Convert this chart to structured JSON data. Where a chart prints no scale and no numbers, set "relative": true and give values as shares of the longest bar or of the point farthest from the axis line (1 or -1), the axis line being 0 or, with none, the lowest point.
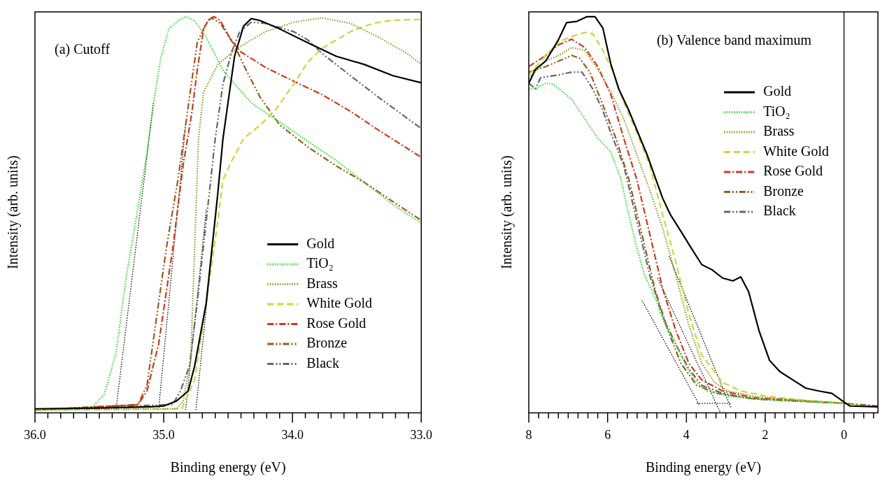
{
  "chart_data": [
    {
      "type": "line",
      "title": "(a) Cutoff",
      "xlabel": "Binding energy (eV)",
      "ylabel": "Intensity (arb. units)",
      "relative": true,
      "tick_labels": "x",
      "legend": "bottom right",
      "xlim": [
        36,
        33
      ],
      "xticks": [
        {
          "value": 36,
          "label": "36.0"
        },
        {
          "value": 35.9,
          "label": null
        },
        {
          "value": 35.8,
          "label": null
        },
        {
          "value": 35.7,
          "label": null
        },
        {
          "value": 35.6,
          "label": null
        },
        {
          "value": 35.5,
          "label": null
        },
        {
          "value": 35.4,
          "label": null
        },
        {
          "value": 35.3,
          "label": null
        },
        {
          "value": 35.2,
          "label": null
        },
        {
          "value": 35.1,
          "label": null
        },
        {
          "value": 35,
          "label": "35.0"
        },
        {
          "value": 34.9,
          "label": null
        },
        {
          "value": 34.8,
          "label": null
        },
        {
          "value": 34.7,
          "label": null
        },
        {
          "value": 34.6,
          "label": null
        },
        {
          "value": 34.5,
          "label": null
        },
        {
          "value": 34.4,
          "label": null
        },
        {
          "value": 34.3,
          "label": null
        },
        {
          "value": 34.2,
          "label": null
        },
        {
          "value": 34.1,
          "label": null
        },
        {
          "value": 34,
          "label": "34.0"
        },
        {
          "value": 33.9,
          "label": null
        },
        {
          "value": 33.8,
          "label": null
        },
        {
          "value": 33.7,
          "label": null
        },
        {
          "value": 33.6,
          "label": null
        },
        {
          "value": 33.5,
          "label": null
        },
        {
          "value": 33.4,
          "label": null
        },
        {
          "value": 33.3,
          "label": null
        },
        {
          "value": 33.2,
          "label": null
        },
        {
          "value": 33.1,
          "label": null
        },
        {
          "value": 33,
          "label": "33.0"
        }
      ],
      "series": [
        {
          "name": "Gold",
          "color": "#000000",
          "line_style": "solid",
          "x": [
            36.0,
            35.5,
            35.1,
            35.0,
            34.9,
            34.81,
            34.76,
            34.67,
            34.58,
            34.54,
            34.45,
            34.38,
            34.32,
            34.25,
            34.1,
            33.88,
            33.66,
            33.44,
            33.22,
            33.0
          ],
          "values": [
            0.01,
            0.012,
            0.015,
            0.017,
            0.03,
            0.055,
            0.118,
            0.277,
            0.554,
            0.692,
            0.9,
            0.976,
            0.995,
            0.99,
            0.969,
            0.934,
            0.9,
            0.879,
            0.851,
            0.833
          ]
        },
        {
          "name": "TiO₂",
          "color": "#33dd33",
          "line_style": "dotted",
          "x": [
            36.0,
            35.57,
            35.46,
            35.37,
            35.29,
            35.2,
            35.13,
            35.08,
            35.02,
            34.96,
            34.89,
            34.83,
            34.76,
            34.67,
            34.54,
            34.45,
            34.32,
            34.1,
            33.88,
            33.66,
            33.44,
            33.22,
            33.01
          ],
          "values": [
            0.008,
            0.008,
            0.048,
            0.152,
            0.346,
            0.519,
            0.657,
            0.782,
            0.9,
            0.969,
            0.99,
            1,
            0.99,
            0.948,
            0.865,
            0.83,
            0.782,
            0.734,
            0.685,
            0.637,
            0.581,
            0.526,
            0.481
          ]
        },
        {
          "name": "Brass",
          "color": "#8a9a2a",
          "line_style": "dotted",
          "x": [
            36.0,
            34.9,
            34.85,
            34.79,
            34.76,
            34.73,
            34.69,
            34.58,
            34.43,
            34.21,
            33.99,
            33.77,
            33.55,
            33.33,
            33.11,
            33.01
          ],
          "values": [
            0.007,
            0.01,
            0.028,
            0.138,
            0.415,
            0.692,
            0.81,
            0.879,
            0.92,
            0.962,
            0.986,
            0.997,
            0.983,
            0.948,
            0.907,
            0.882
          ]
        },
        {
          "name": "White Gold",
          "color": "#c8d83a",
          "line_style": "dashed",
          "x": [
            36.0,
            34.86,
            34.76,
            34.67,
            34.58,
            34.54,
            34.47,
            34.38,
            34.25,
            34.14,
            33.99,
            33.88,
            33.77,
            33.66,
            33.55,
            33.44,
            33.33,
            33.22,
            33.01
          ],
          "values": [
            0.007,
            0.01,
            0.083,
            0.277,
            0.484,
            0.588,
            0.637,
            0.692,
            0.727,
            0.761,
            0.83,
            0.886,
            0.92,
            0.941,
            0.962,
            0.976,
            0.986,
            0.991,
            0.993
          ]
        },
        {
          "name": "Rose Gold",
          "color": "#cc3a1a",
          "line_style": "dashdot",
          "x": [
            36.0,
            35.2,
            35.13,
            35.04,
            34.93,
            34.85,
            34.78,
            34.74,
            34.69,
            34.65,
            34.61,
            34.56,
            34.49,
            34.41,
            34.21,
            33.99,
            33.77,
            33.55,
            33.33,
            33.01
          ],
          "values": [
            0.007,
            0.02,
            0.055,
            0.173,
            0.415,
            0.623,
            0.761,
            0.865,
            0.969,
            0.993,
            1,
            0.99,
            0.948,
            0.913,
            0.872,
            0.837,
            0.803,
            0.761,
            0.713,
            0.647
          ]
        },
        {
          "name": "Bronze",
          "color": "#9a5a1a",
          "line_style": "dashdotdot",
          "x": [
            36.0,
            35.2,
            35.13,
            35.07,
            34.98,
            34.89,
            34.8,
            34.74,
            34.67,
            34.63,
            34.56,
            34.45,
            34.36,
            34.25,
            34.1,
            33.88,
            33.66,
            33.44,
            33.22,
            33.01
          ],
          "values": [
            0.007,
            0.021,
            0.069,
            0.208,
            0.415,
            0.588,
            0.796,
            0.934,
            0.983,
            0.997,
            0.983,
            0.927,
            0.865,
            0.796,
            0.727,
            0.671,
            0.623,
            0.581,
            0.533,
            0.488
          ]
        },
        {
          "name": "Black",
          "color": "#666666",
          "line_style": "dashdotdot",
          "x": [
            36.0,
            34.93,
            34.87,
            34.8,
            34.74,
            34.67,
            34.6,
            34.54,
            34.47,
            34.41,
            34.32,
            34.21,
            33.99,
            33.88,
            33.77,
            33.55,
            33.33,
            33.01
          ],
          "values": [
            0.007,
            0.021,
            0.055,
            0.118,
            0.277,
            0.484,
            0.692,
            0.83,
            0.913,
            0.962,
            0.986,
            0.983,
            0.962,
            0.941,
            0.907,
            0.851,
            0.796,
            0.72
          ]
        },
        {
          "type": "line",
          "color": "#000000",
          "line_style": "dotted",
          "x": [
            35.37,
            35.08
          ],
          "values": [
            0.01,
            0.782
          ]
        },
        {
          "type": "line",
          "color": "#000000",
          "line_style": "dotted",
          "x": [
            35.04,
            34.83
          ],
          "values": [
            0.007,
            0.727
          ]
        },
        {
          "type": "line",
          "color": "#000000",
          "line_style": "dotted",
          "x": [
            34.83,
            34.67
          ],
          "values": [
            0.007,
            0.512
          ]
        },
        {
          "type": "line",
          "color": "#000000",
          "line_style": "dotted",
          "x": [
            34.75,
            34.58
          ],
          "values": [
            0.007,
            0.554
          ]
        }
      ]
    },
    {
      "type": "line",
      "title": "(b) Valence band maximum",
      "xlabel": "Binding energy (eV)",
      "ylabel": "Intensity (arb. units)",
      "relative": true,
      "tick_labels": "x",
      "legend": "top right",
      "xlim": [
        8,
        -0.86
      ],
      "xticks": [
        8,
        {
          "value": 7.75,
          "label": null
        },
        {
          "value": 7.5,
          "label": null
        },
        {
          "value": 7.25,
          "label": null
        },
        {
          "value": 7,
          "label": null
        },
        {
          "value": 6.75,
          "label": null
        },
        {
          "value": 6.5,
          "label": null
        },
        {
          "value": 6.25,
          "label": null
        },
        6,
        {
          "value": 5.75,
          "label": null
        },
        {
          "value": 5.5,
          "label": null
        },
        {
          "value": 5.25,
          "label": null
        },
        {
          "value": 5,
          "label": null
        },
        {
          "value": 4.75,
          "label": null
        },
        {
          "value": 4.5,
          "label": null
        },
        {
          "value": 4.25,
          "label": null
        },
        4,
        {
          "value": 3.75,
          "label": null
        },
        {
          "value": 3.5,
          "label": null
        },
        {
          "value": 3.25,
          "label": null
        },
        {
          "value": 3,
          "label": null
        },
        {
          "value": 2.75,
          "label": null
        },
        {
          "value": 2.5,
          "label": null
        },
        {
          "value": 2.25,
          "label": null
        },
        2,
        {
          "value": 1.75,
          "label": null
        },
        {
          "value": 1.5,
          "label": null
        },
        {
          "value": 1.25,
          "label": null
        },
        {
          "value": 1,
          "label": null
        },
        {
          "value": 0.75,
          "label": null
        },
        {
          "value": 0.5,
          "label": null
        },
        {
          "value": 0.25,
          "label": null
        },
        0,
        {
          "value": -0.25,
          "label": null
        },
        {
          "value": -0.5,
          "label": null
        },
        {
          "value": -0.75,
          "label": null
        }
      ],
      "ref_lines": [
        {
          "axis": "x",
          "value": 0,
          "color": "#000000"
        }
      ],
      "series": [
        {
          "name": "Gold",
          "color": "#000000",
          "line_style": "solid",
          "x": [
            8.0,
            7.83,
            7.57,
            7.24,
            7.04,
            6.78,
            6.52,
            6.32,
            6.12,
            5.92,
            5.72,
            5.46,
            5.2,
            5.0,
            4.8,
            4.6,
            4.4,
            4.14,
            3.88,
            3.61,
            3.35,
            3.08,
            2.82,
            2.62,
            2.42,
            2.16,
            1.89,
            1.63,
            1.3,
            0.97,
            0.64,
            0.31,
            0.01,
            -0.15,
            -0.86
          ],
          "values": [
            0.832,
            0.867,
            0.888,
            0.943,
            0.985,
            0.988,
            1,
            1,
            0.971,
            0.881,
            0.818,
            0.763,
            0.7,
            0.652,
            0.596,
            0.541,
            0.499,
            0.458,
            0.416,
            0.374,
            0.361,
            0.34,
            0.333,
            0.343,
            0.305,
            0.208,
            0.132,
            0.104,
            0.083,
            0.062,
            0.055,
            0.049,
            0.028,
            0.017,
            0.015
          ]
        },
        {
          "name": "TiO₂",
          "color": "#33dd33",
          "line_style": "dotted",
          "x": [
            8.0,
            7.83,
            7.57,
            7.37,
            6.91,
            6.58,
            6.25,
            5.92,
            5.66,
            5.46,
            5.26,
            5.06,
            4.8,
            4.54,
            4.27,
            4.01,
            3.74,
            3.48,
            2.95,
            2.29,
            1.63,
            0.97,
            0.01,
            -0.86
          ],
          "values": [
            0.818,
            0.818,
            0.832,
            0.829,
            0.791,
            0.742,
            0.693,
            0.659,
            0.589,
            0.499,
            0.416,
            0.347,
            0.291,
            0.222,
            0.173,
            0.118,
            0.076,
            0.055,
            0.042,
            0.035,
            0.031,
            0.028,
            0.024,
            0.015
          ]
        },
        {
          "name": "Brass",
          "color": "#8a9a2a",
          "line_style": "dotted",
          "x": [
            8.0,
            7.57,
            7.24,
            6.91,
            6.58,
            6.25,
            5.92,
            5.59,
            5.26,
            4.93,
            4.6,
            4.27,
            3.94,
            3.61,
            3.28,
            2.95,
            2.29,
            1.63,
            0.01
          ],
          "values": [
            0.846,
            0.888,
            0.902,
            0.922,
            0.915,
            0.867,
            0.811,
            0.742,
            0.652,
            0.562,
            0.465,
            0.347,
            0.222,
            0.125,
            0.076,
            0.055,
            0.042,
            0.035,
            0.024
          ]
        },
        {
          "name": "White Gold",
          "color": "#c8d83a",
          "line_style": "dashed",
          "x": [
            8.0,
            7.57,
            7.24,
            6.91,
            6.58,
            6.38,
            6.12,
            5.86,
            5.59,
            5.26,
            4.93,
            4.6,
            4.27,
            3.94,
            3.61,
            3.08,
            2.62,
            1.96,
            0.97,
            0.01
          ],
          "values": [
            0.853,
            0.902,
            0.936,
            0.95,
            0.96,
            0.957,
            0.915,
            0.86,
            0.784,
            0.707,
            0.624,
            0.499,
            0.381,
            0.25,
            0.146,
            0.076,
            0.055,
            0.042,
            0.031,
            0.024
          ]
        },
        {
          "name": "Rose Gold",
          "color": "#cc3a1a",
          "line_style": "dashdot",
          "x": [
            8.0,
            7.57,
            7.24,
            6.91,
            6.58,
            6.25,
            5.92,
            5.59,
            5.26,
            4.93,
            4.6,
            4.27,
            3.94,
            3.61,
            3.08,
            2.29,
            0.01,
            -0.86
          ],
          "values": [
            0.874,
            0.902,
            0.929,
            0.943,
            0.922,
            0.874,
            0.804,
            0.693,
            0.589,
            0.451,
            0.312,
            0.208,
            0.125,
            0.083,
            0.055,
            0.038,
            0.024,
            0.017
          ]
        },
        {
          "name": "Bronze",
          "color": "#9a5a1a",
          "line_style": "dashdotdot",
          "x": [
            8.0,
            7.57,
            7.24,
            6.91,
            6.71,
            6.45,
            6.12,
            5.79,
            5.46,
            5.13,
            4.8,
            4.47,
            4.14,
            3.74,
            3.22,
            2.29,
            0.01
          ],
          "values": [
            0.86,
            0.874,
            0.888,
            0.902,
            0.895,
            0.86,
            0.777,
            0.693,
            0.589,
            0.451,
            0.312,
            0.208,
            0.125,
            0.069,
            0.049,
            0.035,
            0.024
          ]
        },
        {
          "name": "Black",
          "color": "#666666",
          "line_style": "dashdotdot",
          "x": [
            8.0,
            7.83,
            7.7,
            7.24,
            6.91,
            6.65,
            6.38,
            6.12,
            5.92,
            5.59,
            5.26,
            4.93,
            4.6,
            4.27,
            3.94,
            3.61,
            3.08,
            2.29,
            0.01
          ],
          "values": [
            0.832,
            0.818,
            0.846,
            0.853,
            0.86,
            0.86,
            0.818,
            0.763,
            0.707,
            0.624,
            0.485,
            0.347,
            0.243,
            0.173,
            0.111,
            0.069,
            0.049,
            0.035,
            0.024
          ]
        },
        {
          "type": "line",
          "color": "#000000",
          "line_style": "dotted",
          "x": [
            5.13,
            3.68
          ],
          "values": [
            0.284,
            0.021
          ]
        },
        {
          "type": "line",
          "color": "#000000",
          "line_style": "dotted",
          "x": [
            4.73,
            3.15
          ],
          "values": [
            0.34,
            0.003
          ]
        },
        {
          "type": "line",
          "color": "#000000",
          "line_style": "dotted",
          "x": [
            4.44,
            2.88
          ],
          "values": [
            0.395,
            0.014
          ]
        },
        {
          "type": "line",
          "color": "#000000",
          "line_style": "dotted",
          "x": [
            3.74,
            2.88
          ],
          "values": [
            0.024,
            0.024
          ]
        }
      ]
    }
  ]
}
